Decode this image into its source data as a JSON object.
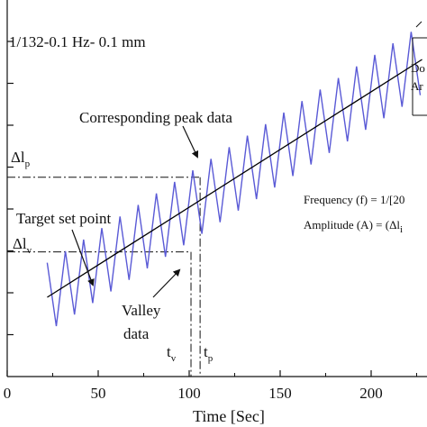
{
  "chart_data": {
    "type": "line",
    "title": "1/132-0.1 Hz- 0.1 mm",
    "xlabel": "Time [Sec]",
    "ylabel": "",
    "xlim": [
      0,
      225
    ],
    "x_ticks": [
      "0",
      "50",
      "100",
      "150",
      "200"
    ],
    "x_tick_values": [
      0,
      50,
      100,
      150,
      200
    ],
    "series": [
      {
        "style": "triangle-wave",
        "color": "#5a5ad6",
        "x_start": 22,
        "x_end": 228,
        "period": 10,
        "first_peak_x": 22,
        "trend_start": 0.2,
        "trend_end": 0.86,
        "amplitude": 0.096
      },
      {
        "style": "trend-line",
        "color": "#000000",
        "x": [
          22,
          228
        ],
        "y": [
          0.2,
          0.86
        ]
      }
    ],
    "annotations": {
      "corresponding_peak": "Corresponding peak data",
      "target_set_point": "Target set point",
      "valley_line1": "Valley",
      "valley_line2": "data",
      "delta_lp": "Δl",
      "delta_lp_sub": "p",
      "delta_lv": "Δl",
      "delta_lv_sub": "v",
      "t_v": "t",
      "t_v_sub": "v",
      "t_p": "t",
      "t_p_sub": "p",
      "frequency": "Frequency (f) = 1/[20",
      "amplitude": "Amplitude (A) = (Δl",
      "amplitude_sub": "i",
      "corner_top": "Do",
      "corner_bottom": "Ar"
    },
    "markers": {
      "peak_time": 106,
      "valley_time": 101,
      "peak_level": 0.533,
      "valley_level": 0.326
    },
    "grid": false,
    "legend": "none"
  }
}
